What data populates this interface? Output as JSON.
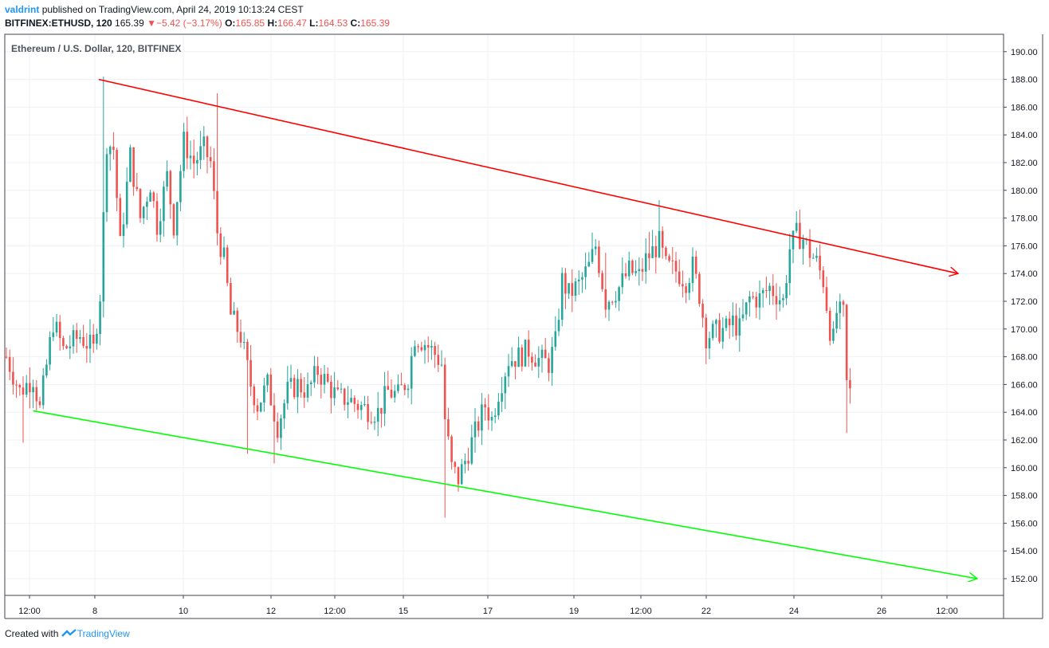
{
  "header": {
    "user": "valdrint",
    "published_text": "published on TradingView.com, April 24, 2019 10:13:24 CEST"
  },
  "quote": {
    "symbol": "BITFINEX:ETHUSD, 120",
    "last": "165.39",
    "arrow": "▼",
    "change": "−5.42 (−3.17%)",
    "open_label": "O:",
    "open": "165.85",
    "high_label": "H:",
    "high": "166.47",
    "low_label": "L:",
    "low": "164.53",
    "close_label": "C:",
    "close": "165.39"
  },
  "footer": {
    "created_with": "Created with",
    "brand": "TradingView"
  },
  "colors": {
    "up": "#26a69a",
    "down": "#ef5350",
    "resistance": "#ff0000",
    "support": "#00ff00",
    "grid": "#eef1f6"
  },
  "chart_data": {
    "type": "candlestick",
    "title": "Ethereum / U.S. Dollar, 120, BITFINEX",
    "ylim": [
      150,
      191
    ],
    "y_ticks": [
      "152.00",
      "154.00",
      "156.00",
      "158.00",
      "160.00",
      "162.00",
      "164.00",
      "166.00",
      "168.00",
      "170.00",
      "172.00",
      "174.00",
      "176.00",
      "178.00",
      "180.00",
      "182.00",
      "184.00",
      "186.00",
      "188.00",
      "190.00"
    ],
    "x_ticks": [
      "12:00",
      "8",
      "10",
      "12",
      "12:00",
      "15",
      "17",
      "19",
      "12:00",
      "22",
      "24",
      "26",
      "12:00"
    ],
    "grid": true,
    "price_path": [
      [
        0,
        168.0
      ],
      [
        4,
        165.5
      ],
      [
        8,
        166.5
      ],
      [
        10,
        164.2
      ],
      [
        14,
        170.5
      ],
      [
        17,
        168.5
      ],
      [
        22,
        169.5
      ],
      [
        26,
        168.5
      ],
      [
        28,
        172.5
      ],
      [
        30,
        183.5
      ],
      [
        32,
        183.0
      ],
      [
        34,
        176.0
      ],
      [
        37,
        182.5
      ],
      [
        40,
        178.0
      ],
      [
        43,
        180.5
      ],
      [
        45,
        177.5
      ],
      [
        48,
        181.0
      ],
      [
        50,
        177.5
      ],
      [
        53,
        183.5
      ],
      [
        56,
        182.0
      ],
      [
        59,
        183.0
      ],
      [
        61,
        182.0
      ],
      [
        63,
        177.0
      ],
      [
        65,
        175.0
      ],
      [
        67,
        171.0
      ],
      [
        70,
        169.5
      ],
      [
        73,
        166.0
      ],
      [
        75,
        164.5
      ],
      [
        78,
        166.0
      ],
      [
        81,
        163.0
      ],
      [
        84,
        165.5
      ],
      [
        87,
        166.0
      ],
      [
        90,
        165.5
      ],
      [
        93,
        167.0
      ],
      [
        96,
        166.0
      ],
      [
        99,
        165.0
      ],
      [
        102,
        165.0
      ],
      [
        105,
        164.5
      ],
      [
        108,
        164.2
      ],
      [
        111,
        164.0
      ],
      [
        114,
        165.5
      ],
      [
        117,
        165.2
      ],
      [
        120,
        166.5
      ],
      [
        122,
        169.5
      ],
      [
        125,
        169.0
      ],
      [
        128,
        168.2
      ],
      [
        130,
        167.5
      ],
      [
        131,
        163.5
      ],
      [
        133,
        160.0
      ],
      [
        135,
        159.2
      ],
      [
        137,
        160.5
      ],
      [
        140,
        162.5
      ],
      [
        143,
        164.5
      ],
      [
        145,
        163.5
      ],
      [
        147,
        165.5
      ],
      [
        150,
        167.8
      ],
      [
        153,
        168.0
      ],
      [
        156,
        168.5
      ],
      [
        159,
        167.8
      ],
      [
        162,
        167.5
      ],
      [
        164,
        169.0
      ],
      [
        166,
        173.5
      ],
      [
        168,
        172.5
      ],
      [
        171,
        173.2
      ],
      [
        174,
        174.5
      ],
      [
        176,
        176.0
      ],
      [
        179,
        172.0
      ],
      [
        181,
        172.5
      ],
      [
        183,
        173.0
      ],
      [
        186,
        174.2
      ],
      [
        189,
        173.8
      ],
      [
        191,
        175.0
      ],
      [
        193,
        175.6
      ],
      [
        195,
        176.2
      ],
      [
        197,
        174.5
      ],
      [
        200,
        174.2
      ],
      [
        203,
        173.5
      ],
      [
        205,
        174.5
      ],
      [
        207,
        172.5
      ],
      [
        209,
        169.5
      ],
      [
        212,
        169.8
      ],
      [
        215,
        170.0
      ],
      [
        217,
        170.5
      ],
      [
        219,
        170.0
      ],
      [
        222,
        172.2
      ],
      [
        225,
        172.2
      ],
      [
        228,
        173.0
      ],
      [
        230,
        172.5
      ],
      [
        232,
        172.0
      ],
      [
        234,
        175.8
      ],
      [
        236,
        176.8
      ],
      [
        238,
        176.5
      ],
      [
        240,
        175.5
      ],
      [
        242,
        174.8
      ],
      [
        244,
        173.5
      ],
      [
        246,
        170.0
      ],
      [
        247,
        169.2
      ],
      [
        248,
        171.2
      ],
      [
        250,
        171.0
      ],
      [
        251,
        166.0
      ],
      [
        252,
        165.4
      ]
    ],
    "trendlines": [
      {
        "name": "resistance",
        "from": [
          29,
          188.0
        ],
        "to": [
          295,
          174.0
        ],
        "arrow": true
      },
      {
        "name": "support",
        "from": [
          8,
          164.1
        ],
        "to": [
          300,
          152.0
        ],
        "arrow": true
      }
    ]
  }
}
